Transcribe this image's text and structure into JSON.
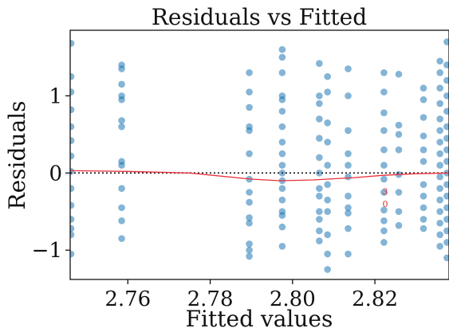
{
  "chart_data": {
    "type": "scatter",
    "title": "Residuals vs Fitted",
    "xlabel": "Fitted values",
    "ylabel": "Residuals",
    "xlim": [
      2.746,
      2.838
    ],
    "ylim": [
      -1.38,
      1.85
    ],
    "xticks": [
      2.76,
      2.78,
      2.8,
      2.82
    ],
    "xtick_labels": [
      "2.76",
      "2.78",
      "2.80",
      "2.82"
    ],
    "yticks": [
      -1,
      0,
      1
    ],
    "ytick_labels": [
      "−1",
      "0",
      "1"
    ],
    "grid": false,
    "colors": {
      "points": "#1f77b4",
      "lowess": "#e8303a",
      "reference": "#222222"
    },
    "reference_line": 0,
    "lowess": {
      "x": [
        2.746,
        2.76,
        2.775,
        2.79,
        2.797,
        2.805,
        2.815,
        2.822,
        2.83,
        2.838
      ],
      "y": [
        0.03,
        0.02,
        0.0,
        -0.08,
        -0.1,
        -0.09,
        -0.06,
        -0.03,
        -0.01,
        0.0
      ]
    },
    "annotations": [
      {
        "text": "3",
        "x": 2.8225,
        "y": -0.28
      },
      {
        "text": "0",
        "x": 2.8225,
        "y": -0.44
      }
    ],
    "point_columns": [
      {
        "x": 2.7462,
        "y": [
          1.68,
          1.25,
          1.05,
          0.82,
          0.6,
          0.42,
          0.22,
          0.02,
          -0.2,
          -0.42,
          -0.6,
          -0.72,
          -0.8,
          -1.05
        ]
      },
      {
        "x": 2.7585,
        "y": [
          1.4,
          1.35,
          1.15,
          1.0,
          0.95,
          0.68,
          0.6,
          0.15,
          0.1,
          -0.2,
          -0.45,
          -0.62,
          -0.85
        ]
      },
      {
        "x": 2.7895,
        "y": [
          1.3,
          1.05,
          0.85,
          0.6,
          0.55,
          0.25,
          -0.08,
          -0.25,
          -0.38,
          -0.58,
          -0.65,
          -0.92,
          -1.0,
          -1.08
        ]
      },
      {
        "x": 2.7975,
        "y": [
          1.6,
          1.5,
          1.3,
          1.0,
          0.95,
          0.8,
          0.6,
          0.4,
          0.25,
          0.1,
          0.0,
          -0.1,
          -0.2,
          -0.35,
          -0.5,
          -0.55,
          -0.7,
          -0.95
        ]
      },
      {
        "x": 2.8065,
        "y": [
          1.42,
          1.0,
          0.9,
          0.7,
          0.45,
          0.2,
          0.0,
          -0.2,
          -0.3,
          -0.5,
          -0.6,
          -0.75,
          -0.88
        ]
      },
      {
        "x": 2.8085,
        "y": [
          1.25,
          1.05,
          0.65,
          0.4,
          0.1,
          -0.15,
          -0.35,
          -0.5,
          -0.8,
          -1.05,
          -1.25
        ]
      },
      {
        "x": 2.8135,
        "y": [
          1.35,
          1.0,
          0.55,
          0.25,
          0.1,
          -0.05,
          -0.3,
          -0.45,
          -0.52,
          -0.72,
          -1.05
        ]
      },
      {
        "x": 2.8222,
        "y": [
          1.3,
          1.05,
          0.78,
          0.55,
          0.3,
          0.1,
          -0.08,
          -0.25,
          -0.48,
          -0.62,
          -0.75,
          -0.9
        ]
      },
      {
        "x": 2.8258,
        "y": [
          1.28,
          0.62,
          0.5,
          0.3,
          -0.02,
          -0.25,
          -0.5,
          -0.68
        ]
      },
      {
        "x": 2.8318,
        "y": [
          1.1,
          0.95,
          0.72,
          0.48,
          0.3,
          0.15,
          -0.15,
          -0.3,
          -0.45,
          -0.6,
          -0.72
        ]
      },
      {
        "x": 2.8358,
        "y": [
          1.45,
          1.3,
          1.1,
          0.9,
          0.7,
          0.55,
          0.4,
          0.25,
          0.1,
          -0.05,
          -0.2,
          -0.35,
          -0.5,
          -0.65,
          -0.8,
          -0.95
        ]
      },
      {
        "x": 2.8375,
        "y": [
          1.7,
          1.4,
          1.2,
          1.0,
          0.8,
          0.6,
          0.45,
          0.3,
          0.15,
          0.0,
          -0.15,
          -0.3,
          -0.45,
          -0.6,
          -0.75,
          -0.9,
          -1.1
        ]
      }
    ]
  }
}
